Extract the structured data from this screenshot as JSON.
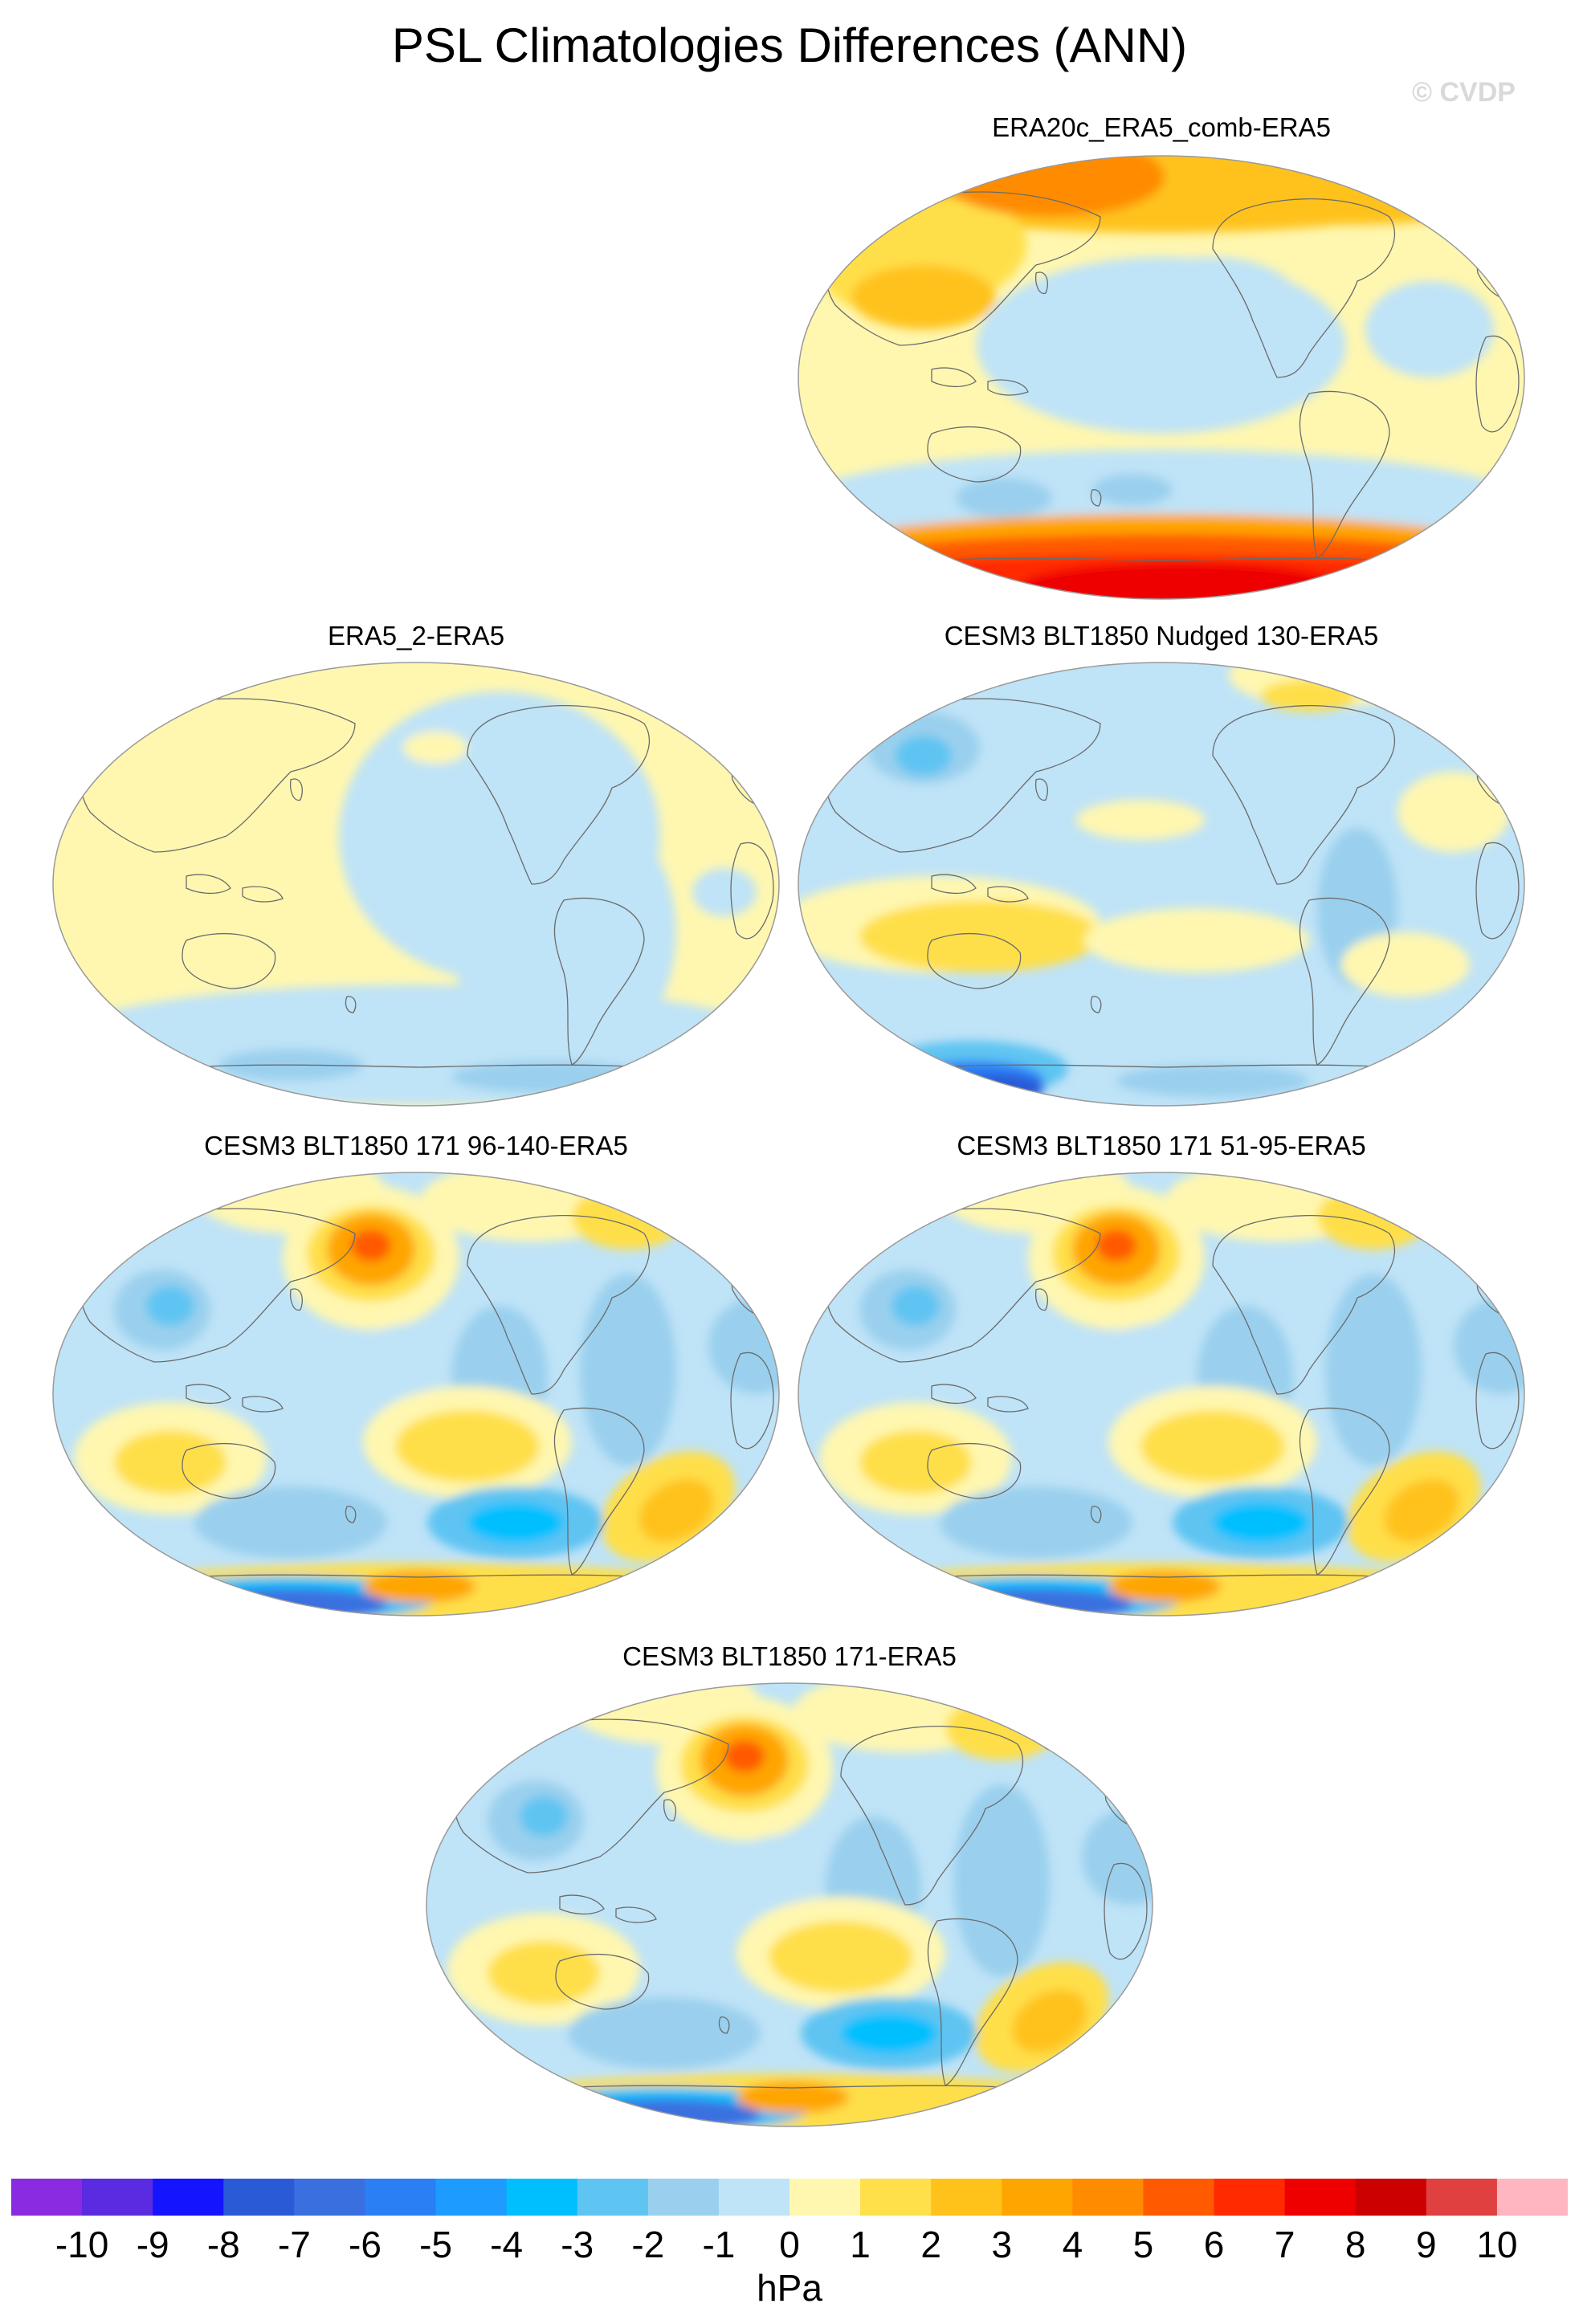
{
  "figure": {
    "title": "PSL Climatologies Differences (ANN)",
    "watermark": "© CVDP",
    "units": "hPa"
  },
  "colors": {
    "levels": [
      -10,
      -9,
      -8,
      -7,
      -6,
      -5,
      -4,
      -3,
      -2,
      -1,
      0,
      1,
      2,
      3,
      4,
      5,
      6,
      7,
      8,
      9,
      10
    ],
    "palette": [
      "#8a2be2",
      "#5a2be0",
      "#1414ff",
      "#2b5ad6",
      "#3a6fe0",
      "#2a7ff5",
      "#1e9bff",
      "#00bfff",
      "#5ec4f2",
      "#9ad0ee",
      "#bfe3f7",
      "#fff7b0",
      "#ffdf4a",
      "#ffc21a",
      "#ffa500",
      "#ff8c00",
      "#ff5a00",
      "#ff2a00",
      "#ee0000",
      "#cc0000",
      "#e04040",
      "#ffb6c1"
    ],
    "land_outline": "#6b6b6b",
    "map_border": "#9a9a9a"
  },
  "panels": [
    {
      "id": "era20c",
      "title": "ERA20c_ERA5_comb-ERA5",
      "pattern": "era20c"
    },
    {
      "id": "era5_2",
      "title": "ERA5_2-ERA5",
      "pattern": "era5_2"
    },
    {
      "id": "nudged",
      "title": "CESM3 BLT1850 Nudged 130-ERA5",
      "pattern": "nudged"
    },
    {
      "id": "run96",
      "title": "CESM3 BLT1850 171 96-140-ERA5",
      "pattern": "model"
    },
    {
      "id": "run51",
      "title": "CESM3 BLT1850 171 51-95-ERA5",
      "pattern": "model"
    },
    {
      "id": "run171",
      "title": "CESM3 BLT1850 171-ERA5",
      "pattern": "model"
    }
  ],
  "colorbar": {
    "tick_labels": [
      "-10",
      "-9",
      "-8",
      "-7",
      "-6",
      "-5",
      "-4",
      "-3",
      "-2",
      "-1",
      "0",
      "1",
      "2",
      "3",
      "4",
      "5",
      "6",
      "7",
      "8",
      "9",
      "10"
    ]
  }
}
